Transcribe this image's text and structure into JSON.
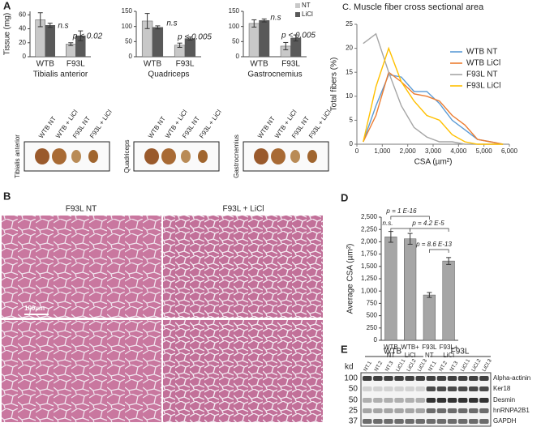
{
  "chart_data": [
    {
      "type": "bar",
      "ylabel": "Tissue (mg)",
      "xlabel": "Tibialis anterior",
      "categories": [
        "WTB",
        "F93L"
      ],
      "series": [
        {
          "color": "#c8c8c8",
          "values": [
            53,
            18
          ],
          "errors": [
            10,
            2
          ]
        },
        {
          "color": "#595959",
          "values": [
            45,
            30
          ],
          "errors": [
            3,
            7
          ]
        }
      ],
      "ylim": [
        0,
        65
      ],
      "yticks": [
        0,
        20,
        40,
        60
      ],
      "annotations": [
        "n.s",
        "p < 0.02"
      ]
    },
    {
      "type": "bar",
      "xlabel": "Quadriceps",
      "categories": [
        "WTB",
        "F93L"
      ],
      "series": [
        {
          "color": "#c8c8c8",
          "values": [
            118,
            38
          ],
          "errors": [
            25,
            7
          ]
        },
        {
          "color": "#595959",
          "values": [
            97,
            60
          ],
          "errors": [
            5,
            5
          ]
        }
      ],
      "ylim": [
        0,
        150
      ],
      "yticks": [
        0,
        50,
        100,
        150
      ],
      "annotations": [
        "n.s",
        "p < 0.005"
      ]
    },
    {
      "type": "bar",
      "xlabel": "Gastrocnemius",
      "categories": [
        "WTB",
        "F93L"
      ],
      "series": [
        {
          "name": "NT",
          "color": "#c8c8c8",
          "values": [
            110,
            35
          ],
          "errors": [
            12,
            12
          ]
        },
        {
          "name": "LiCl",
          "color": "#595959",
          "values": [
            120,
            62
          ],
          "errors": [
            5,
            10
          ]
        }
      ],
      "ylim": [
        0,
        150
      ],
      "yticks": [
        0,
        50,
        100,
        150
      ],
      "annotations": [
        "n.s",
        "p < 0.005"
      ],
      "legend": "top-right"
    },
    {
      "type": "line",
      "title": "C. Muscle fiber cross sectional area",
      "ylabel": "Total fibers (%)",
      "xlabel": "CSA (µm²)",
      "x": [
        250,
        750,
        1250,
        1750,
        2250,
        2750,
        3250,
        3750,
        4250,
        4750,
        5250,
        5750
      ],
      "series": [
        {
          "name": "WTB NT",
          "color": "#5b9bd5",
          "values": [
            0.5,
            8,
            14.5,
            14,
            11,
            11,
            8.5,
            5,
            3,
            1,
            0.5,
            0
          ]
        },
        {
          "name": "WTB LiCl",
          "color": "#ed7d31",
          "values": [
            0.5,
            6,
            15,
            13,
            10.5,
            10,
            9,
            6,
            4,
            1,
            0.5,
            0
          ]
        },
        {
          "name": "F93L NT",
          "color": "#a5a5a5",
          "values": [
            21,
            23,
            15,
            8,
            3.5,
            1.5,
            0.5,
            0.5,
            0,
            0,
            0,
            0
          ]
        },
        {
          "name": "F93L LiCl",
          "color": "#ffc000",
          "values": [
            0.5,
            12,
            20,
            13,
            9,
            6,
            5,
            2,
            0.5,
            0,
            0,
            0
          ]
        }
      ],
      "xlim": [
        0,
        6000
      ],
      "xticks": [
        0,
        {
          "value": 1000,
          "label": "1,000"
        },
        {
          "value": 2000,
          "label": "2,000"
        },
        {
          "value": 3000,
          "label": "3,000"
        },
        {
          "value": 4000,
          "label": "4,000"
        },
        {
          "value": 5000,
          "label": "5,000"
        },
        {
          "value": 6000,
          "label": "6,000"
        }
      ],
      "ylim": [
        0,
        25
      ],
      "yticks": [
        0,
        5,
        10,
        15,
        20,
        25
      ],
      "legend": "right"
    },
    {
      "type": "bar",
      "ylabel": "Average CSA (µm²)",
      "categories": [
        [
          "WTB",
          "NT"
        ],
        [
          "WTB+",
          "LiCl"
        ],
        [
          "F93L",
          "NT"
        ],
        [
          "F93L+",
          "LiCl"
        ]
      ],
      "series": [
        {
          "color": "#a6a6a6",
          "values": [
            2100,
            2060,
            920,
            1610
          ],
          "errors": [
            110,
            110,
            50,
            70
          ]
        }
      ],
      "ylim": [
        0,
        2500
      ],
      "yticks": [
        0,
        250,
        500,
        750,
        {
          "value": 1000,
          "label": "1,000"
        },
        {
          "value": 1250,
          "label": "1,250"
        },
        {
          "value": 1500,
          "label": "1,500"
        },
        {
          "value": 1750,
          "label": "1,750"
        },
        {
          "value": 2000,
          "label": "2,000"
        },
        {
          "value": 2250,
          "label": "2,250"
        },
        {
          "value": 2500,
          "label": "2,500"
        }
      ],
      "annotations": [
        "p = 1 E-16",
        "n.s.",
        "p = 4.2 E-5",
        "p = 8.6 E-13"
      ]
    }
  ],
  "panel_labels": [
    "A",
    "B",
    "D",
    "E"
  ],
  "tissue_photos": {
    "lanes": [
      "WTB NT",
      "WTB + LiCl",
      "F93L NT",
      "F93L + LiCl"
    ],
    "tissues": [
      "Tibialis anterior",
      "Quadriceps",
      "Gastrocnemius"
    ]
  },
  "histology": {
    "columns": [
      "F93L NT",
      "F93L + LiCl"
    ],
    "scale_bar": "100µm"
  },
  "western_blot": {
    "groups": [
      "WTB",
      "F93L"
    ],
    "lanes": [
      "NT.1",
      "NT.2",
      "NT.3",
      "LiCl.1",
      "LiCl.2",
      "LiCl.3",
      "NT.1",
      "NT.2",
      "NT.3",
      "LiCl.1",
      "LiCl.2",
      "LiCl.3"
    ],
    "unit": "kd",
    "markers": [
      100,
      50,
      50,
      25,
      37
    ],
    "proteins": [
      "Alpha-actinin",
      "Ker18",
      "Desmin",
      "hnRNPA2B1",
      "GAPDH"
    ]
  }
}
